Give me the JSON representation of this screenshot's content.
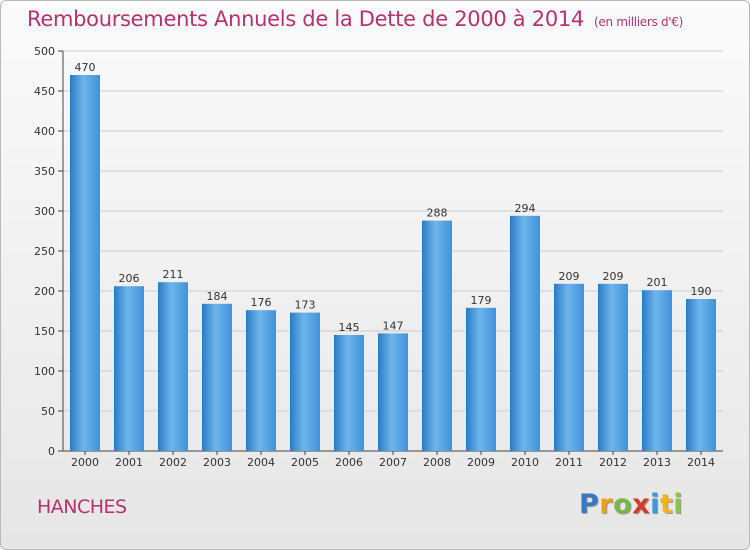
{
  "title": "Remboursements Annuels de la Dette de 2000 à 2014",
  "subtitle": "(en milliers d'€)",
  "place": "HANCHES",
  "brand": {
    "p": "P",
    "r": "r",
    "o": "o",
    "x": "x",
    "i1": "i",
    "t": "t",
    "i2": "i"
  },
  "colors": {
    "bar": "#3f93d9",
    "bar_light": "#6fb5ec",
    "bar_dark": "#2a7ac2",
    "title": "#b4326e",
    "grid": "#cccccc",
    "axis": "#444444"
  },
  "chart_data": {
    "type": "bar",
    "title": "Remboursements Annuels de la Dette de 2000 à 2014",
    "ylabel": "en milliers d'€",
    "xlabel": "",
    "categories": [
      "2000",
      "2001",
      "2002",
      "2003",
      "2004",
      "2005",
      "2006",
      "2007",
      "2008",
      "2009",
      "2010",
      "2011",
      "2012",
      "2013",
      "2014"
    ],
    "values": [
      470,
      206,
      211,
      184,
      176,
      173,
      145,
      147,
      288,
      179,
      294,
      209,
      209,
      201,
      190
    ],
    "ylim": [
      0,
      500
    ],
    "yticks": [
      0,
      50,
      100,
      150,
      200,
      250,
      300,
      350,
      400,
      450,
      500
    ],
    "grid": true,
    "data_labels": true
  }
}
